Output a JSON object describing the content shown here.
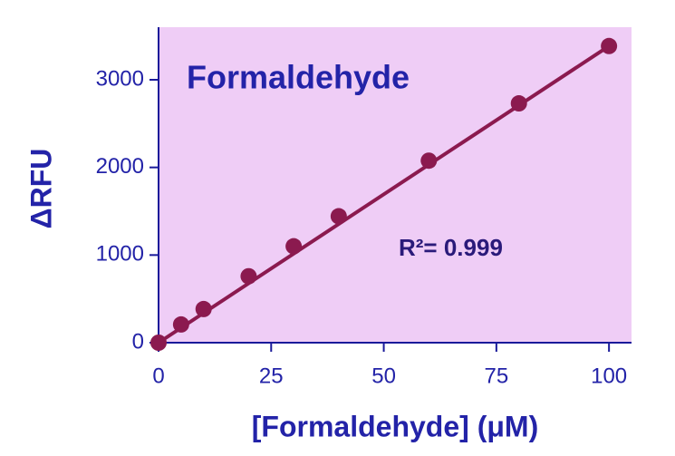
{
  "chart_data": {
    "type": "scatter",
    "title": "Formaldehyde",
    "x_label": "[Formaldehyde] (μM)",
    "y_label": "ΔRFU",
    "annotation": "R²= 0.999",
    "x": [
      0,
      5,
      10,
      20,
      30,
      40,
      60,
      80,
      100
    ],
    "series": [
      {
        "color": "#8b1a4f",
        "values": [
          0,
          208,
          384,
          758,
          1100,
          1443,
          2077,
          2731,
          3385
        ]
      }
    ],
    "fit_line": {
      "x": [
        0,
        100
      ],
      "values": [
        0,
        3385
      ],
      "color": "#8b1a4f"
    },
    "xlim": [
      0,
      105
    ],
    "ylim": [
      0,
      3600
    ],
    "xticks": [
      0,
      25,
      50,
      75,
      100
    ],
    "yticks": [
      0,
      1000,
      2000,
      3000
    ],
    "background": "#efcdf6",
    "axis_color": "#1a1a9a"
  }
}
